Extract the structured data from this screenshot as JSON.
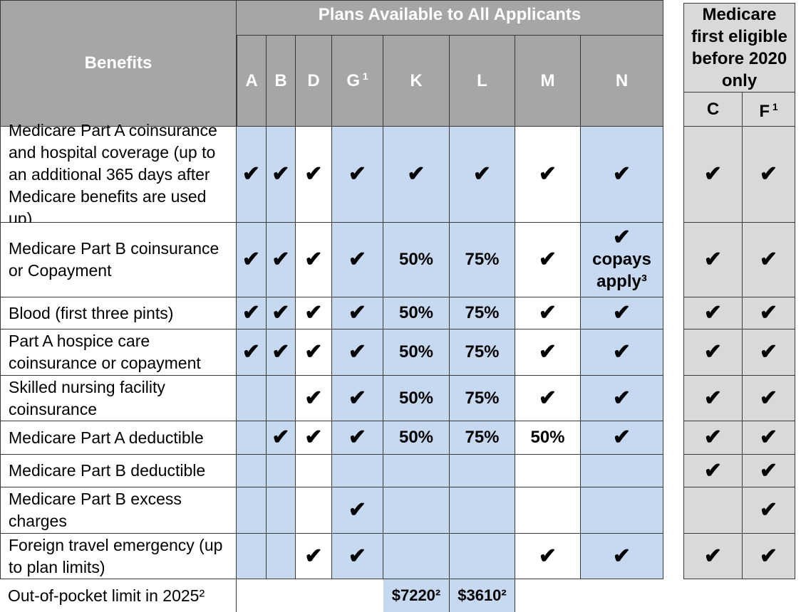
{
  "header": {
    "benefits_label": "Benefits",
    "plans_all_label": "Plans Available to All Applicants",
    "medicare_before_label": "Medicare first eligible before 2020 only",
    "plan_columns": [
      {
        "letter": "A",
        "sup": ""
      },
      {
        "letter": "B",
        "sup": ""
      },
      {
        "letter": "D",
        "sup": ""
      },
      {
        "letter": "G",
        "sup": "1"
      },
      {
        "letter": "K",
        "sup": ""
      },
      {
        "letter": "L",
        "sup": ""
      },
      {
        "letter": "M",
        "sup": ""
      },
      {
        "letter": "N",
        "sup": ""
      },
      {
        "letter": "C",
        "sup": ""
      },
      {
        "letter": "F",
        "sup": "1"
      }
    ]
  },
  "check_symbol": "✔",
  "rows": [
    {
      "label": "Medicare Part A coinsurance and hospital coverage (up to an additional 365 days after Medicare benefits are used up)",
      "cells": [
        "✔",
        "✔",
        "✔",
        "✔",
        "✔",
        "✔",
        "✔",
        "✔",
        "✔",
        "✔"
      ]
    },
    {
      "label": "Medicare Part B coinsurance or Copayment",
      "cells": [
        "✔",
        "✔",
        "✔",
        "✔",
        "50%",
        "75%",
        "✔",
        "✔ copays apply³",
        "✔",
        "✔"
      ]
    },
    {
      "label": "Blood (first three pints)",
      "cells": [
        "✔",
        "✔",
        "✔",
        "✔",
        "50%",
        "75%",
        "✔",
        "✔",
        "✔",
        "✔"
      ]
    },
    {
      "label": "Part A hospice care coinsurance or copayment",
      "cells": [
        "✔",
        "✔",
        "✔",
        "✔",
        "50%",
        "75%",
        "✔",
        "✔",
        "✔",
        "✔"
      ]
    },
    {
      "label": "Skilled nursing facility coinsurance",
      "cells": [
        "",
        "",
        "✔",
        "✔",
        "50%",
        "75%",
        "✔",
        "✔",
        "✔",
        "✔"
      ]
    },
    {
      "label": "Medicare Part A deductible",
      "cells": [
        "",
        "✔",
        "✔",
        "✔",
        "50%",
        "75%",
        "50%",
        "✔",
        "✔",
        "✔"
      ]
    },
    {
      "label": "Medicare Part B deductible",
      "cells": [
        "",
        "",
        "",
        "",
        "",
        "",
        "",
        "",
        "✔",
        "✔"
      ]
    },
    {
      "label": "Medicare Part B excess charges",
      "cells": [
        "",
        "",
        "",
        "✔",
        "",
        "",
        "",
        "",
        "",
        "✔"
      ]
    },
    {
      "label": "Foreign travel emergency (up to plan limits)",
      "cells": [
        "",
        "",
        "✔",
        "✔",
        "",
        "",
        "✔",
        "✔",
        "✔",
        "✔"
      ]
    }
  ],
  "footer": {
    "label": "Out-of-pocket limit in 2025²",
    "K": "$7220²",
    "L": "$3610²"
  },
  "colors": {
    "header_gray": "#a6a6a6",
    "blue": "#c6d9f1",
    "light_gray": "#d9d9d9",
    "white": "#ffffff"
  }
}
